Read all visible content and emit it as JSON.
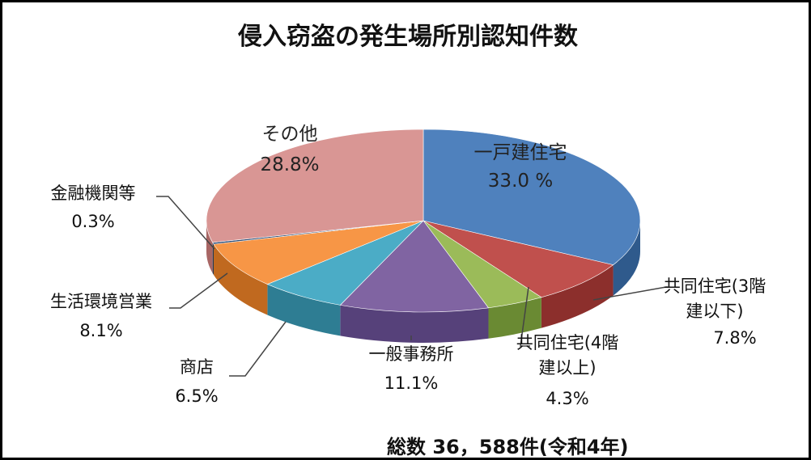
{
  "chart_data": {
    "type": "pie",
    "title": "侵入窃盗の発生場所別認知件数",
    "total_label": "総数 36，588件(令和4年)",
    "three_d": true,
    "slices": [
      {
        "name": "一戸建住宅",
        "name_lines": [
          "一戸建住宅"
        ],
        "value": 33.0,
        "label": "33.0 %",
        "color": "#4F81BD",
        "side": "#2F5A8C"
      },
      {
        "name": "共同住宅(3階建以下)",
        "name_lines": [
          "共同住宅(3階",
          "建以下)"
        ],
        "value": 7.8,
        "label": "7.8%",
        "color": "#C0504D",
        "side": "#8C2F2C"
      },
      {
        "name": "共同住宅(4階建以上)",
        "name_lines": [
          "共同住宅(4階",
          "建以上)"
        ],
        "value": 4.3,
        "label": "4.3%",
        "color": "#9BBB59",
        "side": "#6A8A33"
      },
      {
        "name": "一般事務所",
        "name_lines": [
          "一般事務所"
        ],
        "value": 11.1,
        "label": "11.1%",
        "color": "#8064A2",
        "side": "#56417A"
      },
      {
        "name": "商店",
        "name_lines": [
          "商店"
        ],
        "value": 6.5,
        "label": "6.5%",
        "color": "#4BACC6",
        "side": "#2E7D93"
      },
      {
        "name": "生活環境営業",
        "name_lines": [
          "生活環境営業"
        ],
        "value": 8.1,
        "label": "8.1%",
        "color": "#F79646",
        "side": "#C0691F"
      },
      {
        "name": "金融機関等",
        "name_lines": [
          "金融機関等"
        ],
        "value": 0.3,
        "label": "0.3%",
        "color": "#2C4D75",
        "side": "#1B3350"
      },
      {
        "name": "その他",
        "name_lines": [
          "その他"
        ],
        "value": 28.8,
        "label": "28.8%",
        "color": "#D99694",
        "side": "#A86664"
      }
    ]
  }
}
